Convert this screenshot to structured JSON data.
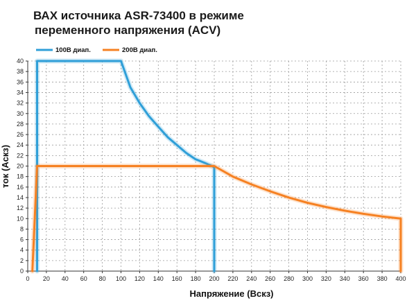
{
  "page": {
    "title_line1": "ВАХ источника ASR-73400 в режиме",
    "title_line2": "переменного напряжения (ACV)"
  },
  "colors": {
    "series_100": "#2f9fd8",
    "series_200": "#f68122",
    "grid": "#9a9a9a",
    "axis": "#333333"
  },
  "chart_data": {
    "type": "line",
    "title": "ВАХ источника ASR-73400 в режиме переменного напряжения (ACV)",
    "xlabel": "Напряжение (Вскз)",
    "ylabel": "ток (Аскз)",
    "xlim": [
      0,
      400
    ],
    "ylim": [
      0,
      40
    ],
    "xticks": [
      0,
      20,
      40,
      60,
      80,
      100,
      120,
      140,
      160,
      180,
      200,
      220,
      240,
      260,
      280,
      300,
      320,
      340,
      360,
      380,
      400
    ],
    "yticks": [
      0,
      2,
      4,
      6,
      8,
      10,
      12,
      14,
      16,
      18,
      20,
      22,
      24,
      26,
      28,
      30,
      32,
      34,
      36,
      38,
      40
    ],
    "grid": true,
    "legend": "top-left",
    "series": [
      {
        "name": "100В диап.",
        "points": [
          [
            10,
            0
          ],
          [
            10,
            40
          ],
          [
            100,
            40
          ],
          [
            110,
            35
          ],
          [
            120,
            32
          ],
          [
            130,
            29.5
          ],
          [
            140,
            27.5
          ],
          [
            150,
            25.5
          ],
          [
            160,
            24
          ],
          [
            170,
            22.5
          ],
          [
            180,
            21.3
          ],
          [
            190,
            20.6
          ],
          [
            200,
            19.8
          ],
          [
            200,
            0
          ]
        ]
      },
      {
        "name": "200В диап.",
        "points": [
          [
            5,
            0
          ],
          [
            10,
            20
          ],
          [
            200,
            20
          ],
          [
            220,
            18
          ],
          [
            240,
            16.5
          ],
          [
            260,
            15.2
          ],
          [
            280,
            14
          ],
          [
            300,
            13
          ],
          [
            320,
            12.2
          ],
          [
            340,
            11.5
          ],
          [
            360,
            10.9
          ],
          [
            380,
            10.4
          ],
          [
            400,
            10
          ],
          [
            400,
            0
          ]
        ]
      }
    ]
  }
}
